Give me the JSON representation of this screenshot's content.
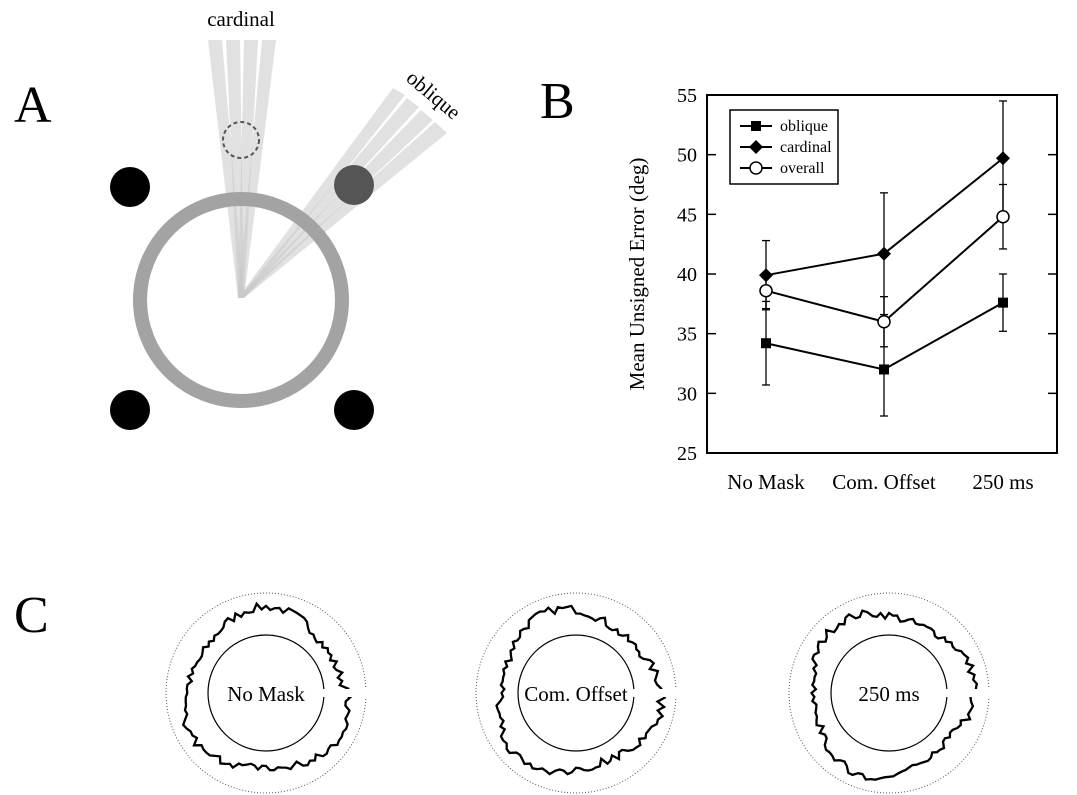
{
  "panel_labels": [
    "A",
    "B",
    "C"
  ],
  "beam_labels": [
    "cardinal",
    "oblique"
  ],
  "chart_data": {
    "type": "line",
    "ylabel": "Mean Unsigned Error (deg)",
    "categories": [
      "No Mask",
      "Com. Offset",
      "250 ms"
    ],
    "ylim": [
      25,
      55
    ],
    "yticks": [
      25,
      30,
      35,
      40,
      45,
      50,
      55
    ],
    "legend": "top-left",
    "series": [
      {
        "name": "oblique",
        "marker": "square",
        "color": "#000000",
        "values": [
          34.2,
          32.0,
          37.6
        ],
        "errors": [
          3.5,
          3.9,
          2.4
        ]
      },
      {
        "name": "cardinal",
        "marker": "diamond",
        "color": "#000000",
        "values": [
          39.9,
          41.7,
          49.7
        ],
        "errors": [
          2.9,
          5.1,
          4.8
        ]
      },
      {
        "name": "overall",
        "marker": "open-circle",
        "color": "#000000",
        "values": [
          38.6,
          36.0,
          44.8
        ],
        "errors": [
          1.5,
          2.1,
          2.7
        ]
      }
    ]
  }
}
